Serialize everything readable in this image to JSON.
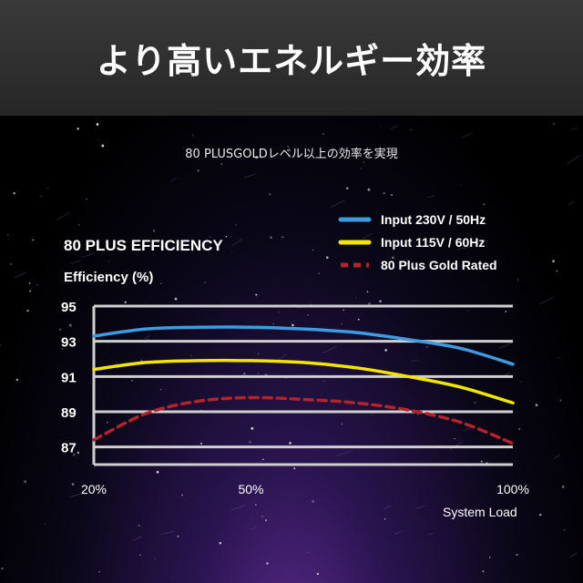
{
  "header": {
    "title": "より高いエネルギー効率"
  },
  "subtitle": "80 PLUSGOLDレベル以上の効率を実現",
  "colors": {
    "blue": "#3d9be0",
    "yellow": "#f2e600",
    "red": "#b3232b",
    "grid": "#cfcfcf"
  },
  "chart_data": {
    "type": "line",
    "title": "80 PLUS EFFICIENCY",
    "ylabel": "Efficiency (%)",
    "xlabel": "System Load",
    "x_ticks": [
      "20%",
      "50%",
      "100%"
    ],
    "y_ticks": [
      95,
      93,
      91,
      89,
      87
    ],
    "ylim": [
      86,
      95
    ],
    "xlim": [
      20,
      100
    ],
    "grid": true,
    "legend_position": "top-right",
    "series": [
      {
        "name": "Input 230V / 50Hz",
        "color": "#3d9be0",
        "style": "solid",
        "x": [
          20,
          30,
          40,
          50,
          60,
          70,
          80,
          90,
          100
        ],
        "y": [
          93.3,
          93.7,
          93.8,
          93.8,
          93.7,
          93.5,
          93.1,
          92.6,
          91.7
        ]
      },
      {
        "name": "Input 115V / 60Hz",
        "color": "#f2e600",
        "style": "solid",
        "x": [
          20,
          30,
          40,
          50,
          60,
          70,
          80,
          90,
          100
        ],
        "y": [
          91.4,
          91.8,
          91.9,
          91.9,
          91.8,
          91.5,
          91.0,
          90.4,
          89.5
        ]
      },
      {
        "name": "80 Plus Gold Rated",
        "color": "#b3232b",
        "style": "dashed",
        "x": [
          20,
          30,
          40,
          50,
          60,
          70,
          80,
          90,
          100
        ],
        "y": [
          87.4,
          88.9,
          89.6,
          89.8,
          89.7,
          89.5,
          89.1,
          88.4,
          87.2
        ]
      }
    ]
  }
}
